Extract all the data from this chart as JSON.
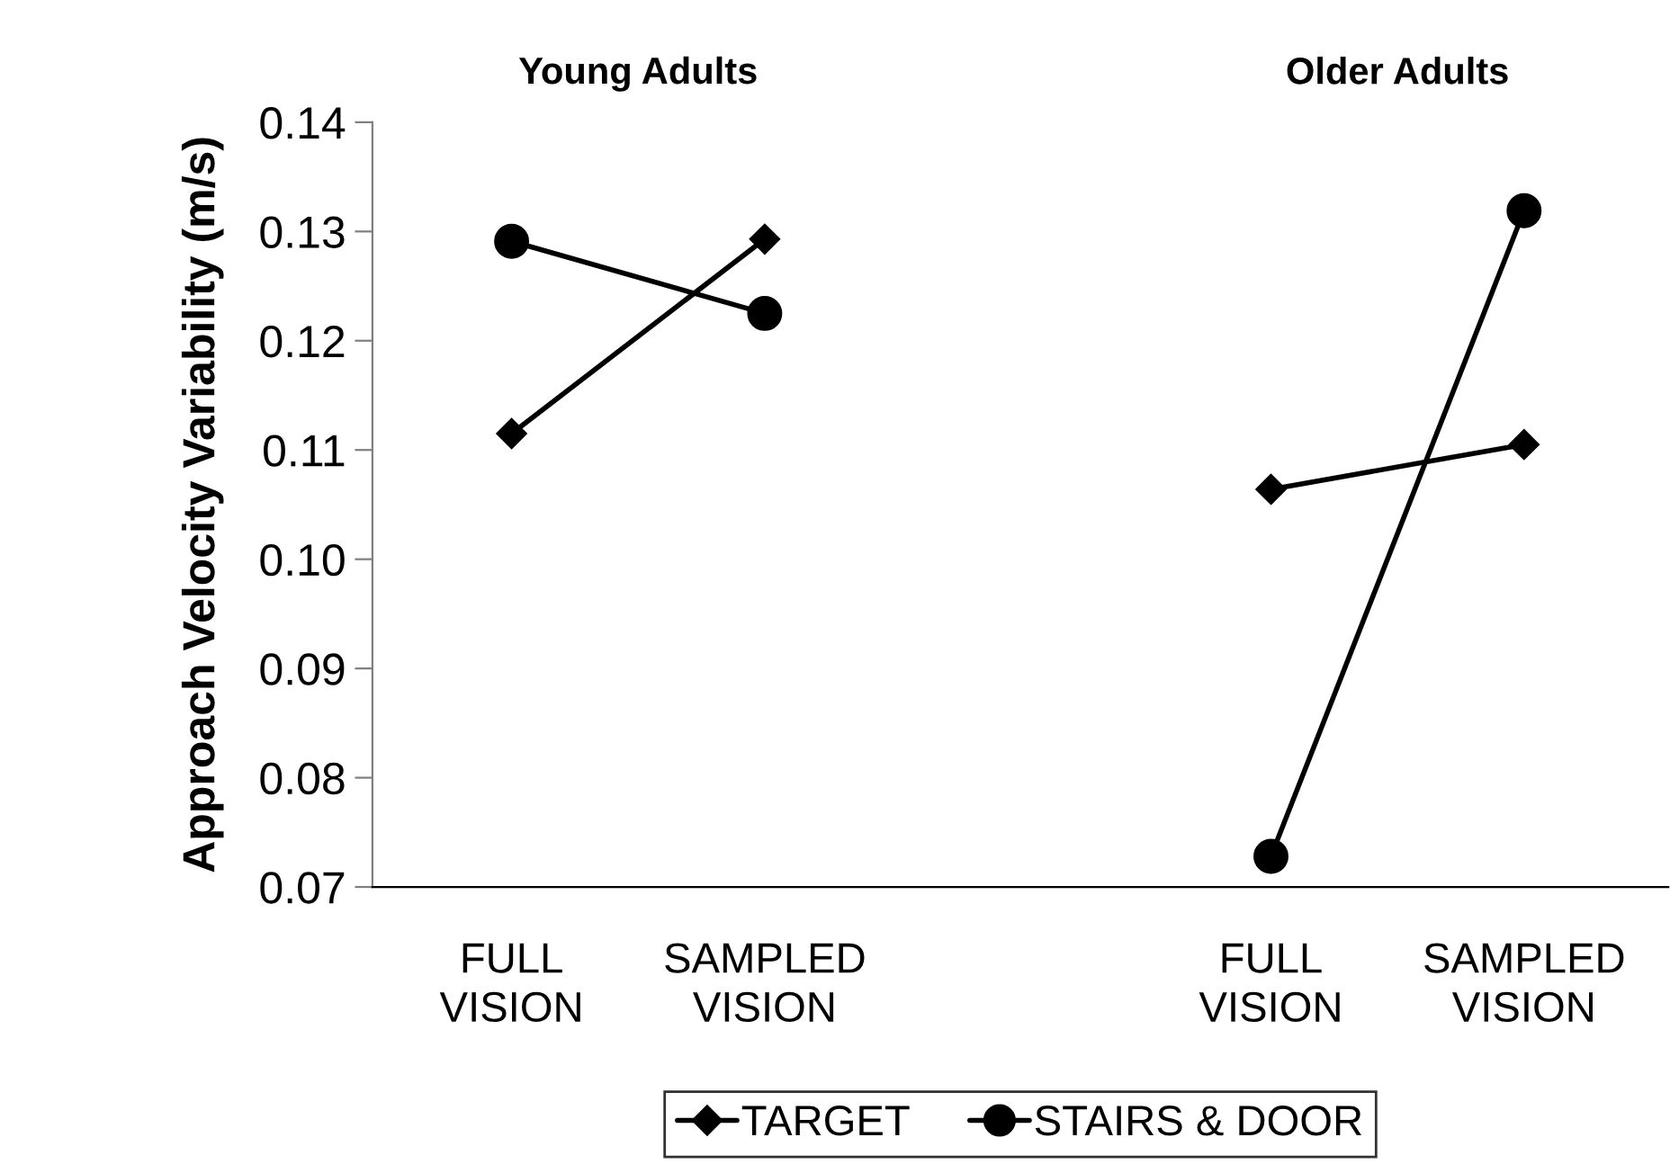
{
  "chart_data": {
    "type": "line",
    "ylabel": "Approach Velocity Variability (m/s)",
    "annotations": [
      "Young Adults",
      "Older Adults"
    ],
    "categories": [
      "FULL\nVISION",
      "SAMPLED\nVISION",
      null,
      "FULL\nVISION",
      "SAMPLED\nVISION"
    ],
    "series": [
      {
        "name": "TARGET",
        "color": "#000000",
        "marker": "diamond",
        "values": [
          0.1115,
          0.1293,
          null,
          0.1064,
          0.1105
        ]
      },
      {
        "name": "STAIRS & DOOR",
        "color": "#000000",
        "marker": "circle",
        "values": [
          0.1291,
          0.1225,
          null,
          0.0728,
          0.1319
        ]
      }
    ],
    "ylim": [
      0.07,
      0.14
    ],
    "yticks": [
      0.07,
      0.08,
      0.09,
      {
        "value": 0.1,
        "label": "0.10"
      },
      0.11,
      0.12,
      0.13,
      0.14
    ],
    "grid": false,
    "legend": "bottom",
    "line_style": "solid"
  }
}
